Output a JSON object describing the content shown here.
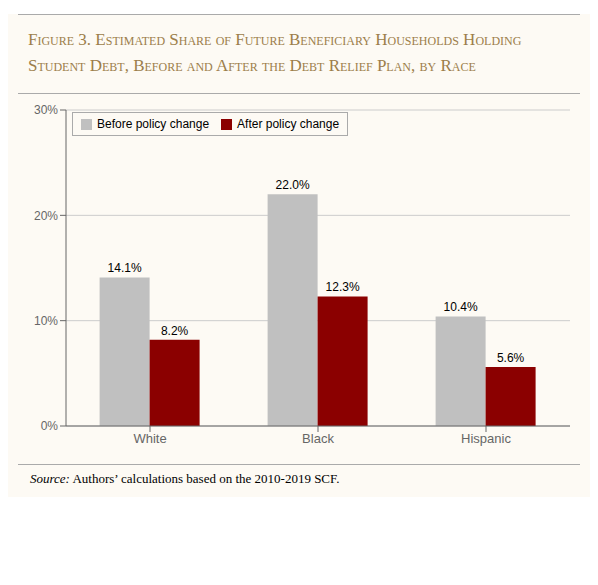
{
  "chart_data": {
    "type": "bar",
    "title": "Figure 3. Estimated Share of Future Beneficiary Households Holding Student Debt, Before and After the Debt Relief Plan, by Race",
    "categories": [
      "White",
      "Black",
      "Hispanic"
    ],
    "series": [
      {
        "name": "Before policy change",
        "color": "#C0C0C0",
        "values": [
          14.1,
          22.0,
          10.4
        ],
        "value_labels": [
          "14.1%",
          "22.0%",
          "10.4%"
        ]
      },
      {
        "name": "After policy change",
        "color": "#8B0000",
        "values": [
          8.2,
          12.3,
          5.6
        ],
        "value_labels": [
          "8.2%",
          "12.3%",
          "5.6%"
        ]
      }
    ],
    "ylim": [
      0,
      30
    ],
    "yticks": [
      {
        "value": 0,
        "label": "0%"
      },
      {
        "value": 10,
        "label": "10%"
      },
      {
        "value": 20,
        "label": "20%"
      },
      {
        "value": 30,
        "label": "30%"
      }
    ],
    "grid": true,
    "legend": "upper left",
    "data_labels": true,
    "annotations": [
      "Source: Authors’ calculations based on the 2010-2019 SCF."
    ]
  }
}
